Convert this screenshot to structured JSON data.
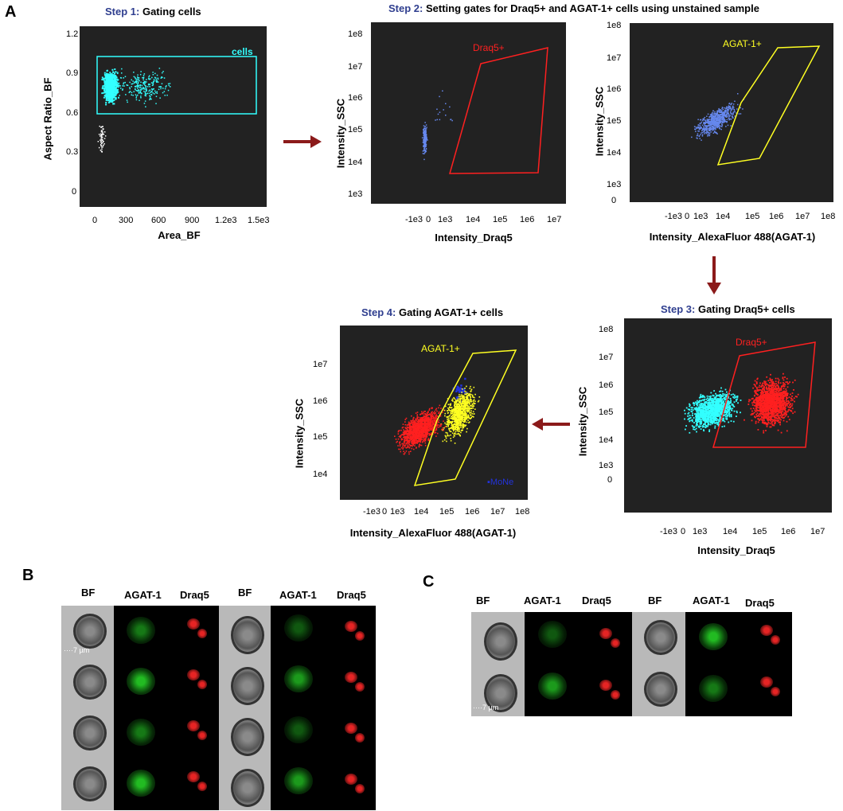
{
  "panels": {
    "A": "A",
    "B": "B",
    "C": "C"
  },
  "steps": {
    "s1": {
      "num": "Step 1:",
      "text": "Gating cells"
    },
    "s2": {
      "num": "Step 2:",
      "text": "Setting gates for Draq5+ and AGAT-1+ cells using unstained sample"
    },
    "s3": {
      "num": "Step 3:",
      "text": "Gating Draq5+ cells"
    },
    "s4": {
      "num": "Step 4:",
      "text": "Gating AGAT-1+ cells"
    }
  },
  "plot1": {
    "xlabel": "Area_BF",
    "ylabel": "Aspect Ratio_BF",
    "gate": "cells",
    "xticks": [
      "0",
      "300",
      "600",
      "900",
      "1.2e3",
      "1.5e3"
    ],
    "yticks": [
      "1.2",
      "0.9",
      "0.6",
      "0.3",
      "0"
    ]
  },
  "plot2": {
    "xlabel": "Intensity_Draq5",
    "ylabel": "Intensity_SSC",
    "gate": "Draq5+",
    "xticks": [
      "-1e3",
      "0",
      "1e3",
      "1e4",
      "1e5",
      "1e6",
      "1e7"
    ],
    "yticks": [
      "1e8",
      "1e7",
      "1e6",
      "1e5",
      "1e4",
      "1e3"
    ]
  },
  "plot3": {
    "xlabel": "Intensity_AlexaFluor 488(AGAT-1)",
    "ylabel": "Intensity_SSC",
    "gate": "AGAT-1+",
    "xticks": [
      "-1e3",
      "0",
      "1e3",
      "1e4",
      "1e5",
      "1e6",
      "1e7",
      "1e8"
    ],
    "yticks": [
      "1e8",
      "1e7",
      "1e6",
      "1e5",
      "1e4",
      "1e3",
      "0"
    ]
  },
  "plot4": {
    "xlabel": "Intensity_Draq5",
    "ylabel": "Intensity_SSC",
    "gate": "Draq5+",
    "xticks": [
      "-1e3",
      "0",
      "1e3",
      "1e4",
      "1e5",
      "1e6",
      "1e7"
    ],
    "yticks": [
      "1e8",
      "1e7",
      "1e6",
      "1e5",
      "1e4",
      "1e3",
      "0"
    ]
  },
  "plot5": {
    "xlabel": "Intensity_AlexaFluor 488(AGAT-1)",
    "ylabel": "Intensity_SSC",
    "gate": "AGAT-1+",
    "legend": "MoNe",
    "xticks": [
      "-1e3",
      "0",
      "1e3",
      "1e4",
      "1e5",
      "1e6",
      "1e7",
      "1e8"
    ],
    "yticks": [
      "1e7",
      "1e6",
      "1e5",
      "1e4"
    ]
  },
  "panelB": {
    "headers": [
      "BF",
      "AGAT-1",
      "Draq5",
      "BF",
      "AGAT-1",
      "Draq5"
    ],
    "scale": "7 µm"
  },
  "panelC": {
    "headers": [
      "BF",
      "AGAT-1",
      "Draq5",
      "BF",
      "AGAT-1",
      "Draq5"
    ],
    "scale": "7 µm"
  },
  "colors": {
    "cyan": "#33ffff",
    "red": "#ff2020",
    "yellow": "#ffff22",
    "blue": "#6688ee",
    "dark": "#222222",
    "arrow": "#8b1a1a",
    "stepnum": "#2f3e8f"
  }
}
